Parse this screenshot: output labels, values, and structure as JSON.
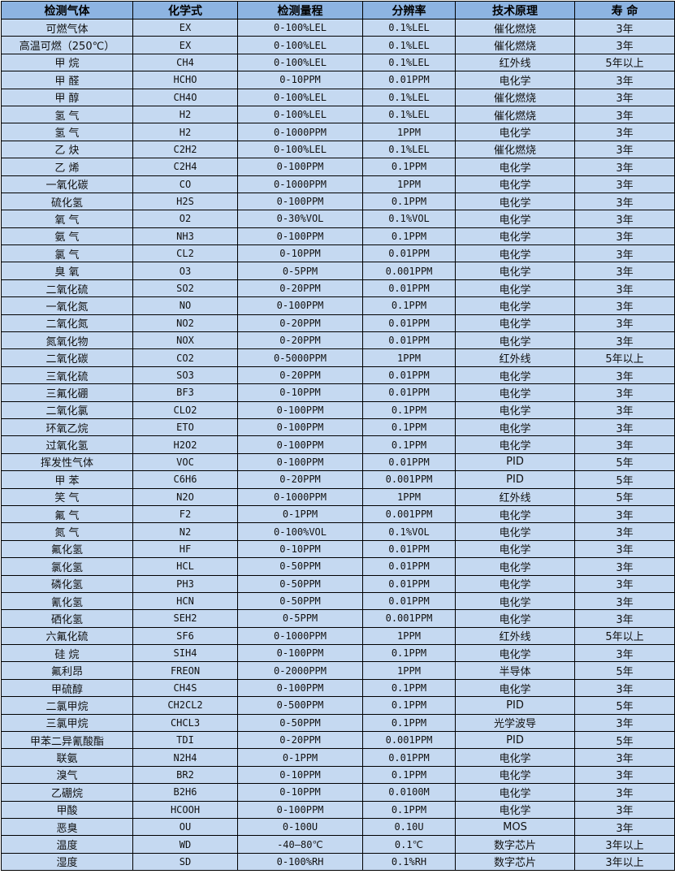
{
  "table": {
    "headers": [
      "检测气体",
      "化学式",
      "检测量程",
      "分辨率",
      "技术原理",
      "寿 命"
    ],
    "rows": [
      [
        "可燃气体",
        "EX",
        "0-100%LEL",
        "0.1%LEL",
        "催化燃烧",
        "3年"
      ],
      [
        "高温可燃（250℃）",
        "EX",
        "0-100%LEL",
        "0.1%LEL",
        "催化燃烧",
        "3年"
      ],
      [
        "甲 烷",
        "CH4",
        "0-100%LEL",
        "0.1%LEL",
        "红外线",
        "5年以上"
      ],
      [
        "甲 醛",
        "HCHO",
        "0-10PPM",
        "0.01PPM",
        "电化学",
        "3年"
      ],
      [
        "甲 醇",
        "CH4O",
        "0-100%LEL",
        "0.1%LEL",
        "催化燃烧",
        "3年"
      ],
      [
        "氢 气",
        "H2",
        "0-100%LEL",
        "0.1%LEL",
        "催化燃烧",
        "3年"
      ],
      [
        "氢 气",
        "H2",
        "0-1000PPM",
        "1PPM",
        "电化学",
        "3年"
      ],
      [
        "乙 炔",
        "C2H2",
        "0-100%LEL",
        "0.1%LEL",
        "催化燃烧",
        "3年"
      ],
      [
        "乙 烯",
        "C2H4",
        "0-100PPM",
        "0.1PPM",
        "电化学",
        "3年"
      ],
      [
        "一氧化碳",
        "CO",
        "0-1000PPM",
        "1PPM",
        "电化学",
        "3年"
      ],
      [
        "硫化氢",
        "H2S",
        "0-100PPM",
        "0.1PPM",
        "电化学",
        "3年"
      ],
      [
        "氧 气",
        "O2",
        "0-30%VOL",
        "0.1%VOL",
        "电化学",
        "3年"
      ],
      [
        "氨 气",
        "NH3",
        "0-100PPM",
        "0.1PPM",
        "电化学",
        "3年"
      ],
      [
        "氯 气",
        "CL2",
        "0-10PPM",
        "0.01PPM",
        "电化学",
        "3年"
      ],
      [
        "臭 氧",
        "O3",
        "0-5PPM",
        "0.001PPM",
        "电化学",
        "3年"
      ],
      [
        "二氧化硫",
        "SO2",
        "0-20PPM",
        "0.01PPM",
        "电化学",
        "3年"
      ],
      [
        "一氧化氮",
        "NO",
        "0-100PPM",
        "0.1PPM",
        "电化学",
        "3年"
      ],
      [
        "二氧化氮",
        "NO2",
        "0-20PPM",
        "0.01PPM",
        "电化学",
        "3年"
      ],
      [
        "氮氧化物",
        "NOX",
        "0-20PPM",
        "0.01PPM",
        "电化学",
        "3年"
      ],
      [
        "二氧化碳",
        "CO2",
        "0-5000PPM",
        "1PPM",
        "红外线",
        "5年以上"
      ],
      [
        "三氧化硫",
        "SO3",
        "0-20PPM",
        "0.01PPM",
        "电化学",
        "3年"
      ],
      [
        "三氟化硼",
        "BF3",
        "0-10PPM",
        "0.01PPM",
        "电化学",
        "3年"
      ],
      [
        "二氧化氯",
        "CLO2",
        "0-100PPM",
        "0.1PPM",
        "电化学",
        "3年"
      ],
      [
        "环氧乙烷",
        "ETO",
        "0-100PPM",
        "0.1PPM",
        "电化学",
        "3年"
      ],
      [
        "过氧化氢",
        "H2O2",
        "0-100PPM",
        "0.1PPM",
        "电化学",
        "3年"
      ],
      [
        "挥发性气体",
        "VOC",
        "0-100PPM",
        "0.01PPM",
        "PID",
        "5年"
      ],
      [
        "甲 苯",
        "C6H6",
        "0-20PPM",
        "0.001PPM",
        "PID",
        "5年"
      ],
      [
        "笑 气",
        "N2O",
        "0-1000PPM",
        "1PPM",
        "红外线",
        "5年"
      ],
      [
        "氟 气",
        "F2",
        "0-1PPM",
        "0.001PPM",
        "电化学",
        "3年"
      ],
      [
        "氮 气",
        "N2",
        "0-100%VOL",
        "0.1%VOL",
        "电化学",
        "3年"
      ],
      [
        "氟化氢",
        "HF",
        "0-10PPM",
        "0.01PPM",
        "电化学",
        "3年"
      ],
      [
        "氯化氢",
        "HCL",
        "0-50PPM",
        "0.01PPM",
        "电化学",
        "3年"
      ],
      [
        "磷化氢",
        "PH3",
        "0-50PPM",
        "0.01PPM",
        "电化学",
        "3年"
      ],
      [
        "氰化氢",
        "HCN",
        "0-50PPM",
        "0.01PPM",
        "电化学",
        "3年"
      ],
      [
        "硒化氢",
        "SEH2",
        "0-5PPM",
        "0.001PPM",
        "电化学",
        "3年"
      ],
      [
        "六氟化硫",
        "SF6",
        "0-1000PPM",
        "1PPM",
        "红外线",
        "5年以上"
      ],
      [
        "硅 烷",
        "SIH4",
        "0-100PPM",
        "0.1PPM",
        "电化学",
        "3年"
      ],
      [
        "氟利昂",
        "FREON",
        "0-2000PPM",
        "1PPM",
        "半导体",
        "5年"
      ],
      [
        "甲硫醇",
        "CH4S",
        "0-100PPM",
        "0.1PPM",
        "电化学",
        "3年"
      ],
      [
        "二氯甲烷",
        "CH2CL2",
        "0-500PPM",
        "0.1PPM",
        "PID",
        "5年"
      ],
      [
        "三氯甲烷",
        "CHCL3",
        "0-50PPM",
        "0.1PPM",
        "光学波导",
        "3年"
      ],
      [
        "甲苯二异氰酸酯",
        "TDI",
        "0-20PPM",
        "0.001PPM",
        "PID",
        "5年"
      ],
      [
        "联氨",
        "N2H4",
        "0-1PPM",
        "0.01PPM",
        "电化学",
        "3年"
      ],
      [
        "溴气",
        "BR2",
        "0-10PPM",
        "0.1PPM",
        "电化学",
        "3年"
      ],
      [
        "乙硼烷",
        "B2H6",
        "0-10PPM",
        "0.0100M",
        "电化学",
        "3年"
      ],
      [
        "甲酸",
        "HCOOH",
        "0-100PPM",
        "0.1PPM",
        "电化学",
        "3年"
      ],
      [
        "恶臭",
        "OU",
        "0-100U",
        "0.10U",
        "MOS",
        "3年"
      ],
      [
        "温度",
        "WD",
        "-40—80℃",
        "0.1℃",
        "数字芯片",
        "3年以上"
      ],
      [
        "湿度",
        "SD",
        "0-100%RH",
        "0.1%RH",
        "数字芯片",
        "3年以上"
      ]
    ]
  },
  "colors": {
    "header_bg": "#8db4e2",
    "row_bg": "#c5d9f1",
    "border": "#000000"
  }
}
